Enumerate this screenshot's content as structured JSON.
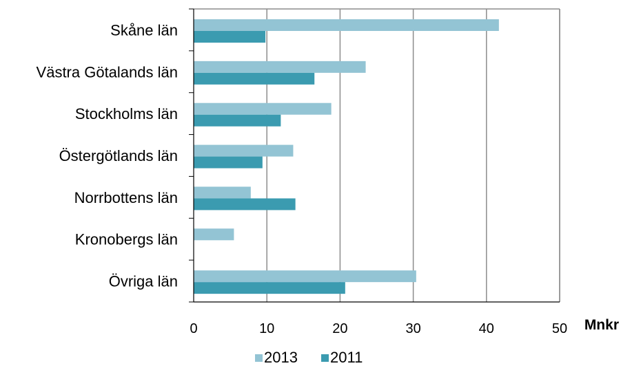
{
  "chart_data": {
    "type": "bar",
    "orientation": "horizontal",
    "categories": [
      "Skåne län",
      "Västra Götalands län",
      "Stockholms län",
      "Östergötlands län",
      "Norrbottens län",
      "Kronobergs län",
      "Övriga län"
    ],
    "series": [
      {
        "name": "2013",
        "values": [
          41.7,
          23.5,
          18.8,
          13.6,
          7.8,
          5.5,
          30.4
        ],
        "color": "#93c4d4"
      },
      {
        "name": "2011",
        "values": [
          9.8,
          16.5,
          11.9,
          9.4,
          13.9,
          null,
          20.7
        ],
        "color": "#3b9bb0"
      }
    ],
    "xlim": [
      0,
      50
    ],
    "xticks": [
      "0",
      "10",
      "20",
      "30",
      "40",
      "50"
    ],
    "unit_label": "Mnkr",
    "title": "",
    "xlabel": "",
    "ylabel": "",
    "grid": true,
    "legend_position": "bottom"
  }
}
